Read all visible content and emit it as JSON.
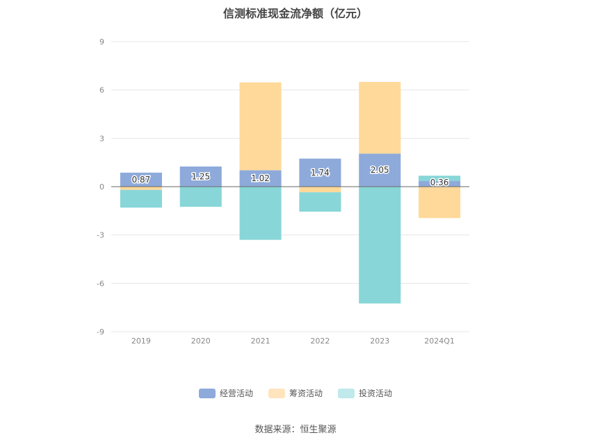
{
  "chart_data": {
    "type": "bar",
    "stacked": true,
    "title": "信测标准现金流净额（亿元）",
    "categories": [
      "2019",
      "2020",
      "2021",
      "2022",
      "2023",
      "2024Q1"
    ],
    "ylim": [
      -9,
      9
    ],
    "yticks": [
      9,
      6,
      3,
      0,
      -3,
      -6,
      -9
    ],
    "grid": true,
    "legend_position": "bottom",
    "series": [
      {
        "name": "经营活动",
        "color": "#8eaadb",
        "values": [
          0.87,
          1.25,
          1.02,
          1.74,
          2.05,
          0.36
        ],
        "labels": [
          "0.87",
          "1.25",
          "1.02",
          "1.74",
          "2.05",
          "0.36"
        ]
      },
      {
        "name": "筹资活动",
        "color": "#ffd99a",
        "values": [
          -0.2,
          0,
          5.45,
          -0.35,
          4.45,
          -1.95
        ]
      },
      {
        "name": "投资活动",
        "color": "#88d6d8",
        "values": [
          -1.1,
          -1.25,
          -3.3,
          -1.2,
          -7.25,
          0.32
        ]
      }
    ]
  },
  "legend": [
    {
      "label": "经营活动",
      "color": "#8eaadb"
    },
    {
      "label": "筹资活动",
      "color": "#ffe4bd"
    },
    {
      "label": "投资活动",
      "color": "#bfe9ea"
    }
  ],
  "source": "数据来源：恒生聚源"
}
